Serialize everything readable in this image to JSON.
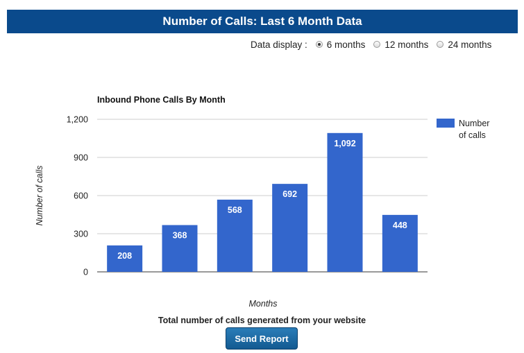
{
  "header": {
    "title": "Number of Calls: Last 6 Month Data"
  },
  "data_display": {
    "label": "Data display :",
    "options": [
      {
        "label": "6 months",
        "checked": true
      },
      {
        "label": "12 months",
        "checked": false
      },
      {
        "label": "24 months",
        "checked": false
      }
    ]
  },
  "chart_data": {
    "type": "bar",
    "title": "Inbound Phone Calls By Month",
    "xlabel": "Months",
    "ylabel": "Number of calls",
    "ylim": [
      0,
      1200
    ],
    "yticks": [
      0,
      300,
      600,
      900,
      1200
    ],
    "ytick_labels": [
      "0",
      "300",
      "600",
      "900",
      "1,200"
    ],
    "categories": [
      "",
      "",
      "",
      "",
      "",
      ""
    ],
    "series": [
      {
        "name": "Number of calls",
        "values": [
          208,
          368,
          568,
          692,
          1092,
          448
        ],
        "value_labels": [
          "208",
          "368",
          "568",
          "692",
          "1,092",
          "448"
        ],
        "color": "#3366cc"
      }
    ],
    "legend_position": "right",
    "grid": true
  },
  "legend": {
    "line1": "Number",
    "line2": "of calls"
  },
  "footer": {
    "caption": "Total number of calls generated from your website",
    "button_label": "Send Report"
  }
}
